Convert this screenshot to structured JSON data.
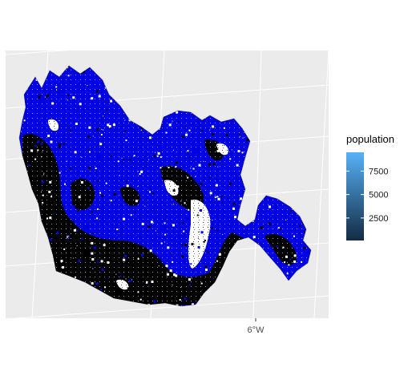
{
  "chart_data": {
    "type": "map",
    "title": "",
    "xlabel": "",
    "ylabel": "",
    "x_ticks": [
      {
        "label": "6°W",
        "value": -6
      }
    ],
    "grid": true,
    "panel_background": "#ebebeb",
    "grid_color": "#ffffff",
    "legend": {
      "title": "population",
      "placement": "right",
      "type": "colorbar",
      "range": [
        100,
        9500
      ],
      "ticks": [
        {
          "label": "2500",
          "value": 2500
        },
        {
          "label": "5000",
          "value": 5000
        },
        {
          "label": "7500",
          "value": 7500
        }
      ],
      "color_low": "#132b43",
      "color_high": "#56b1f7"
    },
    "regions": [
      {
        "name": "blue-fill",
        "color": "#0000ee"
      },
      {
        "name": "dark-fill",
        "color": "#000000"
      },
      {
        "name": "gap-fill",
        "color": "#ffffff"
      }
    ]
  }
}
